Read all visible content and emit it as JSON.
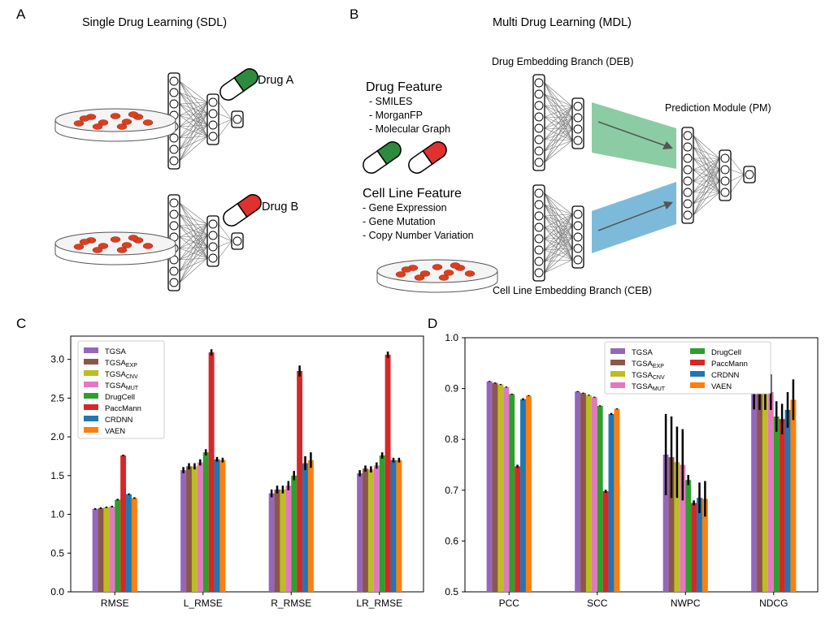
{
  "panels": {
    "A": {
      "letter": "A",
      "title": "Single Drug Learning (SDL)",
      "drug_a": "Drug A",
      "drug_b": "Drug B"
    },
    "B": {
      "letter": "B",
      "title": "Multi Drug Learning (MDL)",
      "deb_label": "Drug Embedding Branch (DEB)",
      "ceb_label": "Cell Line Embedding Branch (CEB)",
      "pm_label": "Prediction Module (PM)",
      "drug_feature_title": "Drug Feature",
      "drug_feature_items": [
        "- SMILES",
        "- MorganFP",
        "- Molecular Graph"
      ],
      "cell_feature_title": "Cell Line Feature",
      "cell_feature_items": [
        "- Gene Expression",
        "- Gene Mutation",
        "- Copy Number Variation"
      ]
    },
    "C": {
      "letter": "C"
    },
    "D": {
      "letter": "D"
    }
  },
  "colors": {
    "pill_green": "#2e8b3e",
    "pill_red": "#e03030",
    "deb_band": "#7fc79a",
    "ceb_band": "#6fb3d6",
    "cell": "#d94020"
  },
  "chart_data": [
    {
      "type": "bar",
      "panel": "C",
      "categories": [
        "RMSE",
        "L_RMSE",
        "R_RMSE",
        "LR_RMSE"
      ],
      "ylim": [
        0.0,
        3.3
      ],
      "yticks": [
        0.0,
        0.5,
        1.0,
        1.5,
        2.0,
        2.5,
        3.0
      ],
      "ytick_labels": [
        "0.0",
        "0.5",
        "1.0",
        "1.5",
        "2.0",
        "2.5",
        "3.0"
      ],
      "legend_position": "top-left",
      "legend_columns": 1,
      "series": [
        {
          "name": "TGSA",
          "sub": "",
          "color": "#9467bd",
          "values": [
            1.07,
            1.57,
            1.27,
            1.53
          ],
          "err": [
            0.01,
            0.04,
            0.05,
            0.04
          ]
        },
        {
          "name": "TGSA",
          "sub": "EXP",
          "color": "#8c564b",
          "values": [
            1.08,
            1.62,
            1.32,
            1.59
          ],
          "err": [
            0.01,
            0.04,
            0.05,
            0.04
          ]
        },
        {
          "name": "TGSA",
          "sub": "CNV",
          "color": "#bcbd22",
          "values": [
            1.09,
            1.62,
            1.32,
            1.58
          ],
          "err": [
            0.01,
            0.04,
            0.05,
            0.04
          ]
        },
        {
          "name": "TGSA",
          "sub": "MUT",
          "color": "#e377c2",
          "values": [
            1.1,
            1.67,
            1.37,
            1.63
          ],
          "err": [
            0.01,
            0.04,
            0.06,
            0.04
          ]
        },
        {
          "name": "DrugCell",
          "sub": "",
          "color": "#2ca02c",
          "values": [
            1.19,
            1.8,
            1.5,
            1.76
          ],
          "err": [
            0.01,
            0.04,
            0.06,
            0.04
          ]
        },
        {
          "name": "PaccMann",
          "sub": "",
          "color": "#d62728",
          "values": [
            1.76,
            3.09,
            2.85,
            3.06
          ],
          "err": [
            0.01,
            0.04,
            0.07,
            0.04
          ]
        },
        {
          "name": "CRDNN",
          "sub": "",
          "color": "#1f77b4",
          "values": [
            1.26,
            1.71,
            1.66,
            1.7
          ],
          "err": [
            0.01,
            0.03,
            0.09,
            0.03
          ]
        },
        {
          "name": "VAEN",
          "sub": "",
          "color": "#ff7f0e",
          "values": [
            1.21,
            1.7,
            1.7,
            1.7
          ],
          "err": [
            0.01,
            0.03,
            0.1,
            0.03
          ]
        }
      ]
    },
    {
      "type": "bar",
      "panel": "D",
      "categories": [
        "PCC",
        "SCC",
        "NWPC",
        "NDCG"
      ],
      "ylim": [
        0.5,
        1.0
      ],
      "yticks": [
        0.5,
        0.6,
        0.7,
        0.8,
        0.9,
        1.0
      ],
      "ytick_labels": [
        "0.5",
        "0.6",
        "0.7",
        "0.8",
        "0.9",
        "1.0"
      ],
      "legend_position": "top-center",
      "legend_columns": 2,
      "series": [
        {
          "name": "TGSA",
          "sub": "",
          "color": "#9467bd",
          "values": [
            0.914,
            0.894,
            0.77,
            0.894
          ],
          "err": [
            0.001,
            0.001,
            0.08,
            0.035
          ]
        },
        {
          "name": "TGSA",
          "sub": "EXP",
          "color": "#8c564b",
          "values": [
            0.911,
            0.891,
            0.765,
            0.893
          ],
          "err": [
            0.001,
            0.001,
            0.08,
            0.035
          ]
        },
        {
          "name": "TGSA",
          "sub": "CNV",
          "color": "#bcbd22",
          "values": [
            0.908,
            0.887,
            0.755,
            0.893
          ],
          "err": [
            0.001,
            0.001,
            0.07,
            0.035
          ]
        },
        {
          "name": "TGSA",
          "sub": "MUT",
          "color": "#e377c2",
          "values": [
            0.903,
            0.883,
            0.75,
            0.893
          ],
          "err": [
            0.001,
            0.001,
            0.07,
            0.035
          ]
        },
        {
          "name": "DrugCell",
          "sub": "",
          "color": "#2ca02c",
          "values": [
            0.889,
            0.866,
            0.72,
            0.845
          ],
          "err": [
            0.001,
            0.001,
            0.01,
            0.03
          ]
        },
        {
          "name": "PaccMann",
          "sub": "",
          "color": "#d62728",
          "values": [
            0.747,
            0.698,
            0.675,
            0.84
          ],
          "err": [
            0.003,
            0.003,
            0.005,
            0.03
          ]
        },
        {
          "name": "CRDNN",
          "sub": "",
          "color": "#1f77b4",
          "values": [
            0.879,
            0.85,
            0.685,
            0.858
          ],
          "err": [
            0.002,
            0.002,
            0.03,
            0.035
          ]
        },
        {
          "name": "VAEN",
          "sub": "",
          "color": "#ff7f0e",
          "values": [
            0.886,
            0.86,
            0.683,
            0.878
          ],
          "err": [
            0.001,
            0.001,
            0.035,
            0.04
          ]
        }
      ]
    }
  ]
}
